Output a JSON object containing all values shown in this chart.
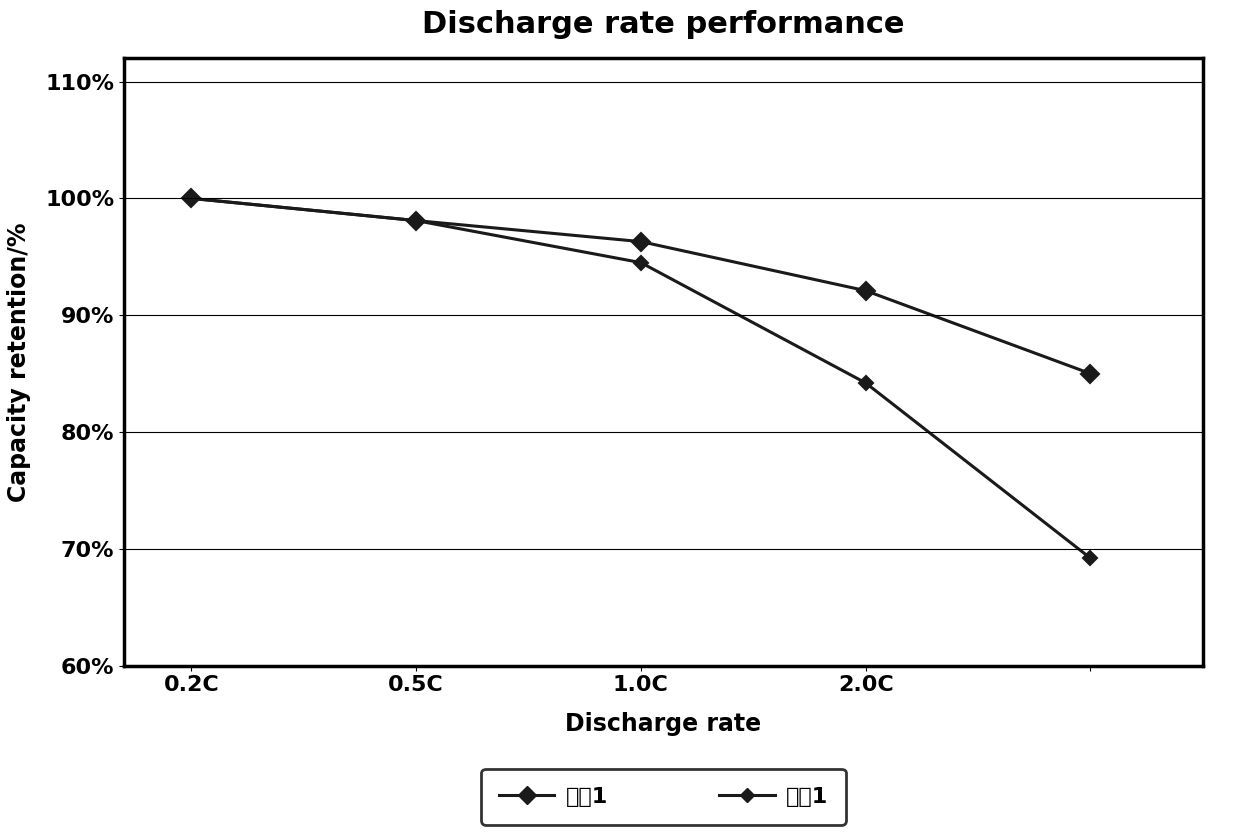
{
  "title": "Discharge rate performance",
  "xlabel": "Discharge rate",
  "ylabel": "Capacity retention/%",
  "x_labels": [
    "0.2C",
    "0.5C",
    "1.0C",
    "2.0C",
    ""
  ],
  "x_values": [
    0,
    1,
    2,
    3,
    4
  ],
  "series": [
    {
      "name": "实兗1",
      "y_values": [
        1.0,
        0.981,
        0.963,
        0.921,
        0.85
      ],
      "color": "#1a1a1a",
      "linewidth": 2.2,
      "marker": "D",
      "markersize": 9
    },
    {
      "name": "对比1",
      "y_values": [
        1.0,
        0.981,
        0.945,
        0.842,
        0.692
      ],
      "color": "#1a1a1a",
      "linewidth": 2.2,
      "marker": "D",
      "markersize": 7
    }
  ],
  "ylim": [
    0.6,
    1.12
  ],
  "yticks": [
    0.6,
    0.7,
    0.8,
    0.9,
    1.0,
    1.1
  ],
  "ytick_labels": [
    "60%",
    "70%",
    "80%",
    "90%",
    "100%",
    "110%"
  ],
  "background_color": "#ffffff",
  "grid_color": "#000000",
  "title_fontsize": 22,
  "axis_label_fontsize": 17,
  "tick_fontsize": 16,
  "legend_fontsize": 16
}
